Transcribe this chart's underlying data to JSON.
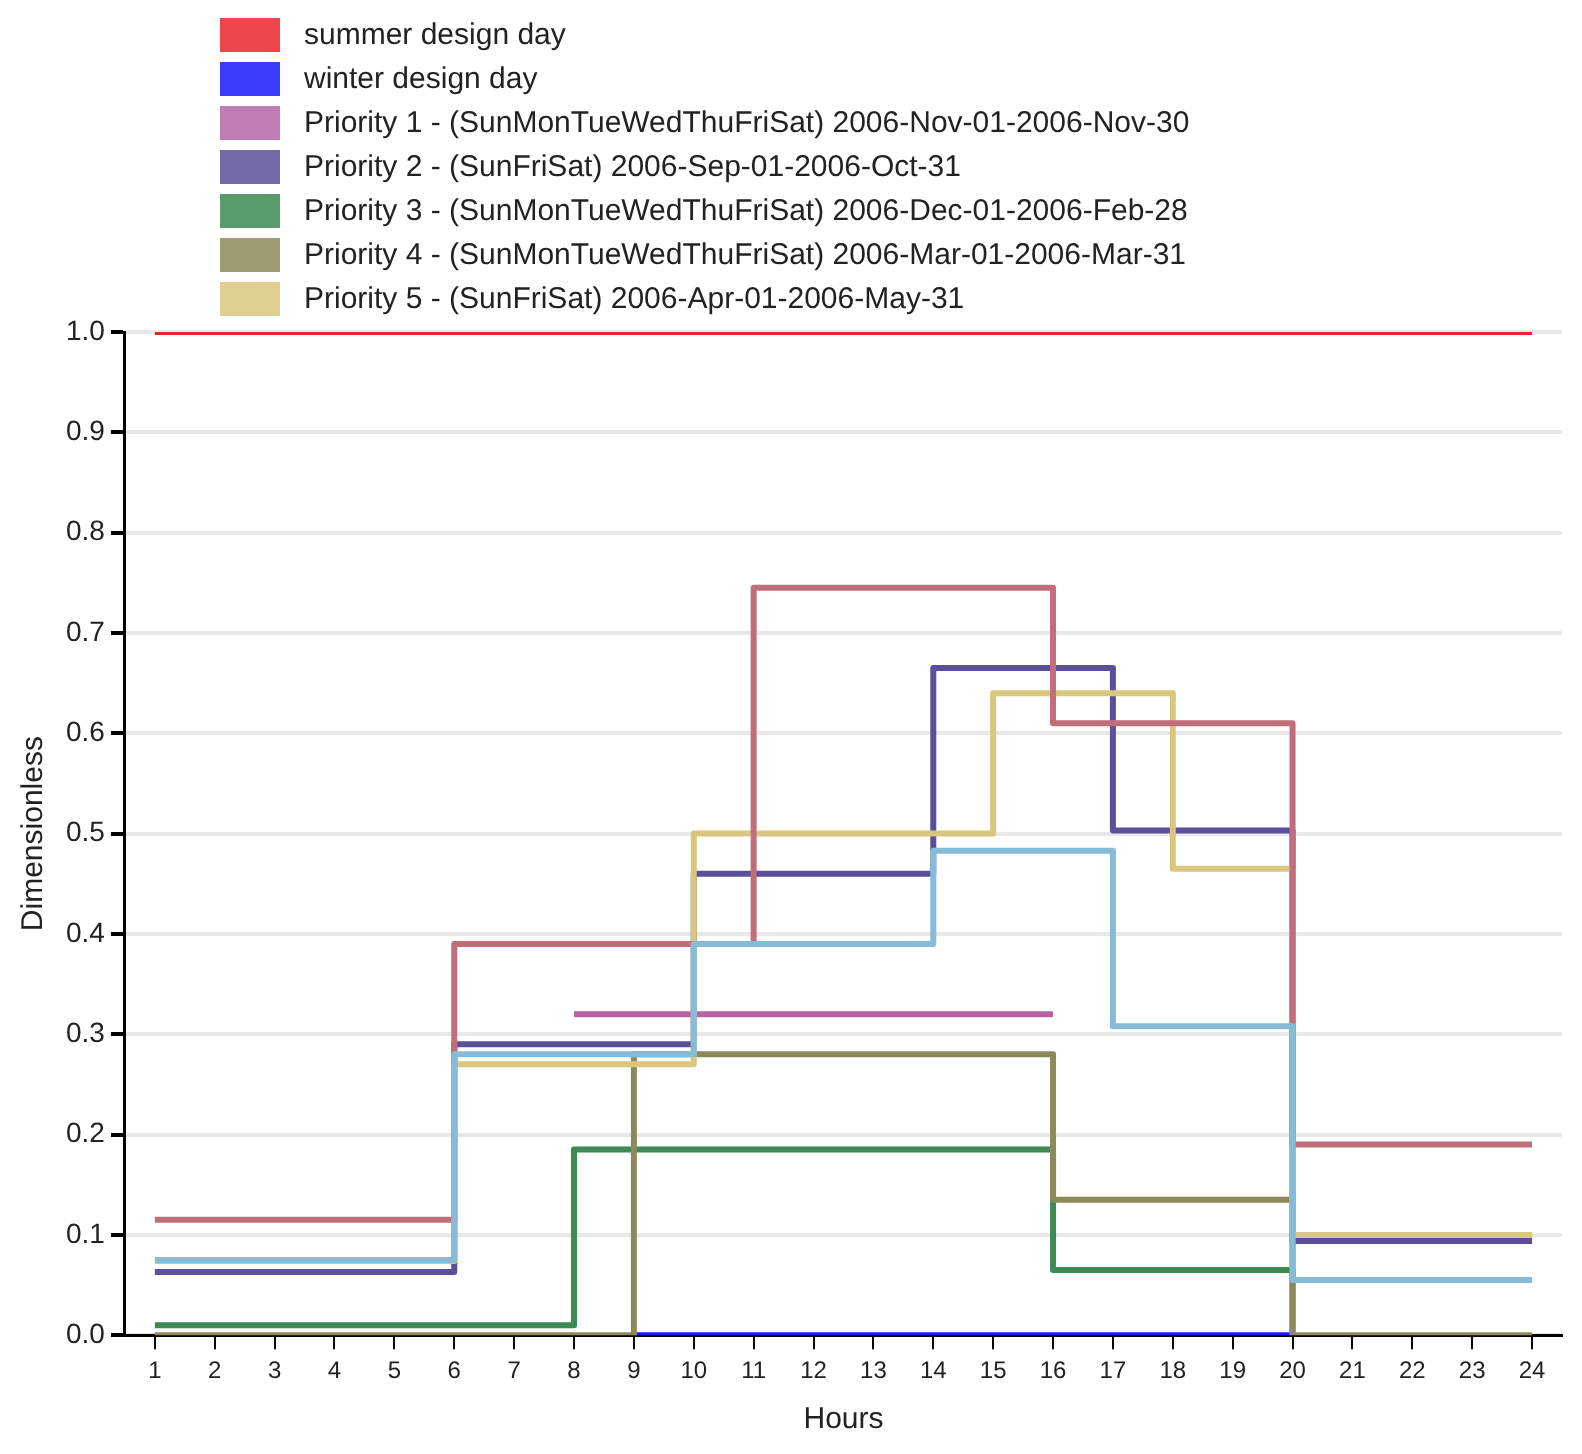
{
  "chart_data": {
    "type": "step",
    "xlabel": "Hours",
    "ylabel": "Dimensionless",
    "x": [
      1,
      2,
      3,
      4,
      5,
      6,
      7,
      8,
      9,
      10,
      11,
      12,
      13,
      14,
      15,
      16,
      17,
      18,
      19,
      20,
      21,
      22,
      23,
      24
    ],
    "xlim": [
      0.5,
      24.5
    ],
    "xticks": [
      1,
      2,
      3,
      4,
      5,
      6,
      7,
      8,
      9,
      10,
      11,
      12,
      13,
      14,
      15,
      16,
      17,
      18,
      19,
      20,
      21,
      22,
      23,
      24
    ],
    "series": [
      {
        "name": "summer design day",
        "color": "#e8262a",
        "values": [
          1,
          1,
          1,
          1,
          1,
          1,
          1,
          1,
          1,
          1,
          1,
          1,
          1,
          1,
          1,
          1,
          1,
          1,
          1,
          1,
          1,
          1,
          1,
          1
        ]
      },
      {
        "name": "winter design day",
        "color": "#1a1aff",
        "values": [
          null,
          null,
          null,
          null,
          null,
          null,
          null,
          null,
          0,
          0,
          0,
          0,
          0,
          0,
          0,
          0,
          0,
          0,
          0,
          0,
          null,
          null,
          null,
          null
        ]
      },
      {
        "name": "Priority 1 - (SunMonTueWedThuFriSat) 2006-Nov-01-2006-Nov-30",
        "color": "#b565a7",
        "values": [
          null,
          null,
          null,
          null,
          null,
          null,
          null,
          0.32,
          0.32,
          0.32,
          0.32,
          0.32,
          0.32,
          0.32,
          0.32,
          0.32,
          null,
          null,
          null,
          null,
          null,
          null,
          null,
          null
        ]
      },
      {
        "name": "Priority 2 - (SunFriSat) 2006-Sep-01-2006-Oct-31",
        "color": "#5b4f99",
        "values": [
          0.063,
          0.063,
          0.063,
          0.063,
          0.063,
          0.29,
          0.29,
          0.29,
          0.29,
          0.46,
          0.46,
          0.46,
          0.46,
          0.665,
          0.665,
          0.665,
          0.503,
          0.503,
          0.503,
          0.094,
          0.094,
          0.094,
          0.094,
          0.094
        ]
      },
      {
        "name": "Priority 3 - (SunMonTueWedThuFriSat) 2006-Dec-01-2006-Feb-28",
        "color": "#3d8a55",
        "values": [
          0.01,
          0.01,
          0.01,
          0.01,
          0.01,
          0.01,
          0.01,
          0.185,
          0.185,
          0.185,
          0.185,
          0.185,
          0.185,
          0.185,
          0.185,
          0.065,
          0.065,
          0.065,
          0.065,
          0,
          null,
          null,
          null,
          null
        ]
      },
      {
        "name": "Priority 4 - (SunMonTueWedThuFriSat) 2006-Mar-01-2006-Mar-31",
        "color": "#8c8a5c",
        "values": [
          0,
          0,
          0,
          0,
          0,
          0,
          0,
          0,
          0.28,
          0.28,
          0.28,
          0.28,
          0.28,
          0.28,
          0.28,
          0.135,
          0.135,
          0.135,
          0.135,
          0,
          0,
          0,
          0,
          0
        ]
      },
      {
        "name": "Priority 5 - (SunFriSat) 2006-Apr-01-2006-May-31",
        "color": "#d9c77d",
        "values": [
          0.074,
          0.074,
          0.074,
          0.074,
          0.074,
          0.27,
          0.27,
          0.27,
          0.27,
          0.5,
          0.5,
          0.5,
          0.5,
          0.5,
          0.64,
          0.64,
          0.64,
          0.465,
          0.465,
          0.1,
          0.1,
          0.1,
          0.1,
          0.1
        ]
      },
      {
        "color": "#c06e7a",
        "values": [
          0.115,
          0.115,
          0.115,
          0.115,
          0.115,
          0.39,
          0.39,
          0.39,
          0.39,
          0.39,
          0.745,
          0.745,
          0.745,
          0.745,
          0.745,
          0.61,
          0.61,
          0.61,
          0.61,
          0.19,
          0.19,
          0.19,
          0.19,
          0.19
        ]
      },
      {
        "color": "#86bcd8",
        "values": [
          0.075,
          0.075,
          0.075,
          0.075,
          0.075,
          0.28,
          0.28,
          0.28,
          0.28,
          0.39,
          0.39,
          0.39,
          0.39,
          0.483,
          0.483,
          0.483,
          0.308,
          0.308,
          0.308,
          0.055,
          0.055,
          0.055,
          0.055,
          0.055
        ]
      }
    ],
    "ylim": [
      0,
      1
    ],
    "yticks": [
      {
        "value": 0,
        "label": "0.0"
      },
      {
        "value": 0.1,
        "label": "0.1"
      },
      {
        "value": 0.2,
        "label": "0.2"
      },
      {
        "value": 0.3,
        "label": "0.3"
      },
      {
        "value": 0.4,
        "label": "0.4"
      },
      {
        "value": 0.5,
        "label": "0.5"
      },
      {
        "value": 0.6,
        "label": "0.6"
      },
      {
        "value": 0.7,
        "label": "0.7"
      },
      {
        "value": 0.8,
        "label": "0.8"
      },
      {
        "value": 0.9,
        "label": "0.9"
      },
      {
        "value": 1,
        "label": "1.0"
      }
    ],
    "grid": "y",
    "legend": "top left"
  }
}
